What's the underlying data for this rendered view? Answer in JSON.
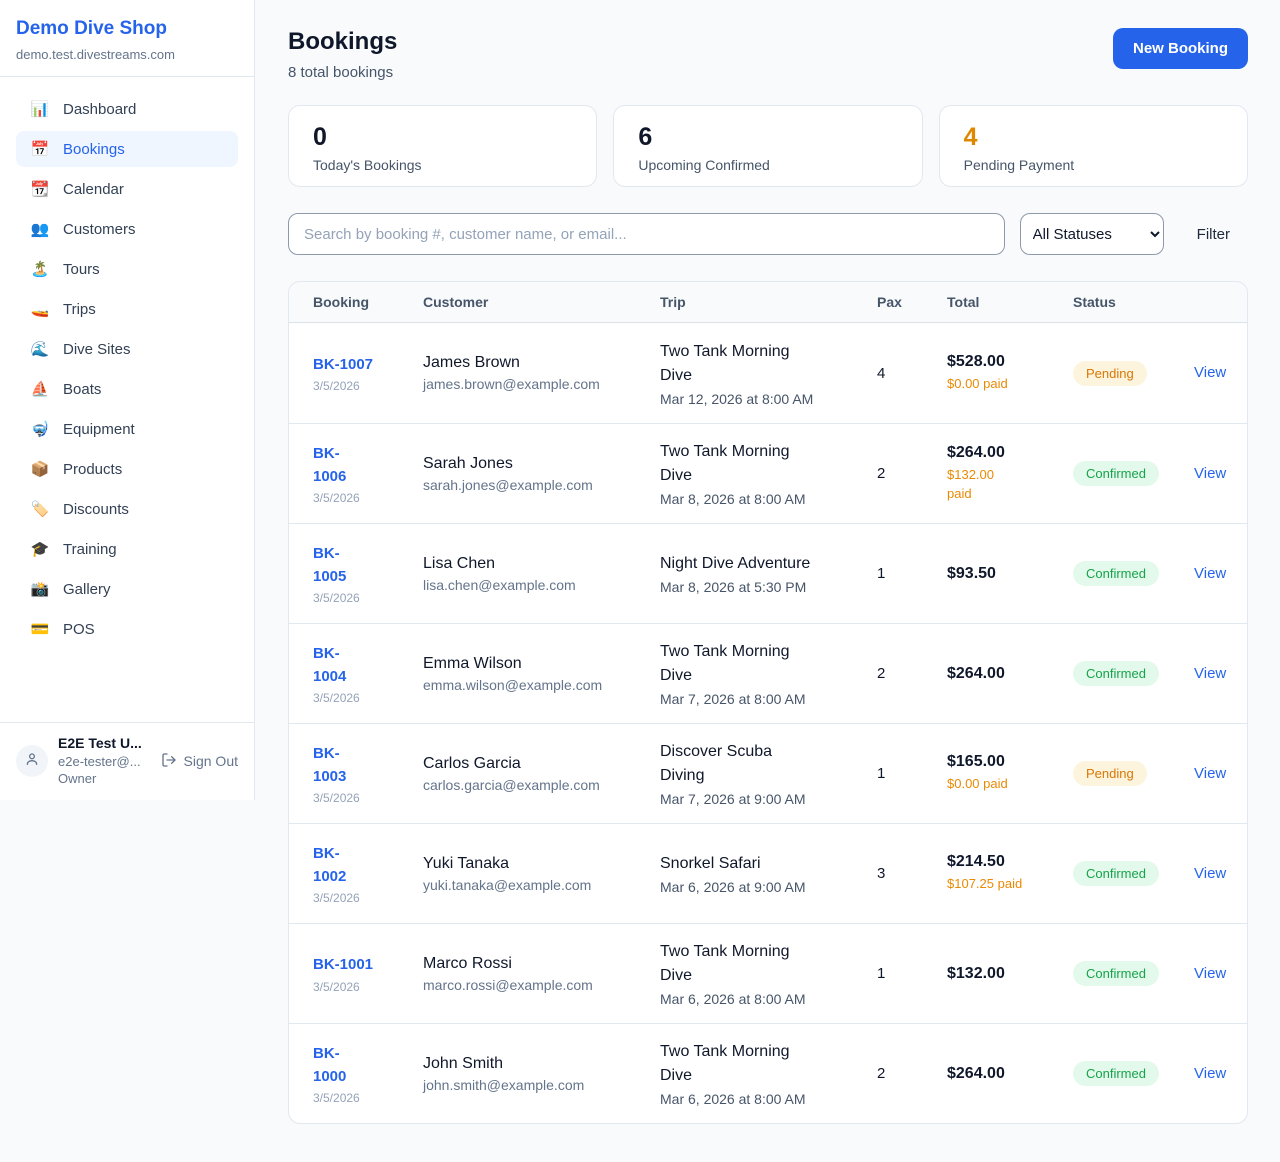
{
  "sidebar": {
    "shop_name": "Demo Dive Shop",
    "shop_domain": "demo.test.divestreams.com",
    "nav": [
      {
        "icon": "📊",
        "label": "Dashboard",
        "active": false
      },
      {
        "icon": "📅",
        "label": "Bookings",
        "active": true
      },
      {
        "icon": "📆",
        "label": "Calendar",
        "active": false
      },
      {
        "icon": "👥",
        "label": "Customers",
        "active": false
      },
      {
        "icon": "🏝️",
        "label": "Tours",
        "active": false
      },
      {
        "icon": "🚤",
        "label": "Trips",
        "active": false
      },
      {
        "icon": "🌊",
        "label": "Dive Sites",
        "active": false
      },
      {
        "icon": "⛵",
        "label": "Boats",
        "active": false
      },
      {
        "icon": "🤿",
        "label": "Equipment",
        "active": false
      },
      {
        "icon": "📦",
        "label": "Products",
        "active": false
      },
      {
        "icon": "🏷️",
        "label": "Discounts",
        "active": false
      },
      {
        "icon": "🎓",
        "label": "Training",
        "active": false
      },
      {
        "icon": "📸",
        "label": "Gallery",
        "active": false
      },
      {
        "icon": "💳",
        "label": "POS",
        "active": false
      }
    ],
    "user": {
      "name": "E2E Test U...",
      "email": "e2e-tester@...",
      "role": "Owner",
      "sign_out_label": "Sign Out"
    }
  },
  "header": {
    "title": "Bookings",
    "subtitle": "8 total bookings",
    "new_booking_label": "New Booking"
  },
  "stats": [
    {
      "value": "0",
      "label": "Today's Bookings",
      "color": "#0f172a"
    },
    {
      "value": "6",
      "label": "Upcoming Confirmed",
      "color": "#0f172a"
    },
    {
      "value": "4",
      "label": "Pending Payment",
      "color": "#e08700"
    }
  ],
  "filters": {
    "search_placeholder": "Search by booking #, customer name, or email...",
    "status_selected": "All Statuses",
    "filter_label": "Filter"
  },
  "table": {
    "columns": [
      "Booking",
      "Customer",
      "Trip",
      "Pax",
      "Total",
      "Status"
    ],
    "rows": [
      {
        "booking_id": "BK-1007",
        "booking_date": "3/5/2026",
        "customer": "James Brown",
        "email": "james.brown@example.com",
        "trip": "Two Tank Morning\nDive",
        "trip_datetime": "Mar 12, 2026 at 8:00 AM",
        "pax": "4",
        "total": "$528.00",
        "paid": "$0.00 paid",
        "status": "Pending",
        "action_label": "View"
      },
      {
        "booking_id": "BK-\n1006",
        "booking_date": "3/5/2026",
        "customer": "Sarah Jones",
        "email": "sarah.jones@example.com",
        "trip": "Two Tank Morning\nDive",
        "trip_datetime": "Mar 8, 2026 at 8:00 AM",
        "pax": "2",
        "total": "$264.00",
        "paid": "$132.00\npaid",
        "status": "Confirmed",
        "action_label": "View"
      },
      {
        "booking_id": "BK-\n1005",
        "booking_date": "3/5/2026",
        "customer": "Lisa Chen",
        "email": "lisa.chen@example.com",
        "trip": "Night Dive Adventure",
        "trip_datetime": "Mar 8, 2026 at 5:30 PM",
        "pax": "1",
        "total": "$93.50",
        "paid": "",
        "status": "Confirmed",
        "action_label": "View"
      },
      {
        "booking_id": "BK-\n1004",
        "booking_date": "3/5/2026",
        "customer": "Emma Wilson",
        "email": "emma.wilson@example.com",
        "trip": "Two Tank Morning\nDive",
        "trip_datetime": "Mar 7, 2026 at 8:00 AM",
        "pax": "2",
        "total": "$264.00",
        "paid": "",
        "status": "Confirmed",
        "action_label": "View"
      },
      {
        "booking_id": "BK-\n1003",
        "booking_date": "3/5/2026",
        "customer": "Carlos Garcia",
        "email": "carlos.garcia@example.com",
        "trip": "Discover Scuba\nDiving",
        "trip_datetime": "Mar 7, 2026 at 9:00 AM",
        "pax": "1",
        "total": "$165.00",
        "paid": "$0.00 paid",
        "status": "Pending",
        "action_label": "View"
      },
      {
        "booking_id": "BK-\n1002",
        "booking_date": "3/5/2026",
        "customer": "Yuki Tanaka",
        "email": "yuki.tanaka@example.com",
        "trip": "Snorkel Safari",
        "trip_datetime": "Mar 6, 2026 at 9:00 AM",
        "pax": "3",
        "total": "$214.50",
        "paid": "$107.25 paid",
        "status": "Confirmed",
        "action_label": "View"
      },
      {
        "booking_id": "BK-1001",
        "booking_date": "3/5/2026",
        "customer": "Marco Rossi",
        "email": "marco.rossi@example.com",
        "trip": "Two Tank Morning\nDive",
        "trip_datetime": "Mar 6, 2026 at 8:00 AM",
        "pax": "1",
        "total": "$132.00",
        "paid": "",
        "status": "Confirmed",
        "action_label": "View"
      },
      {
        "booking_id": "BK-\n1000",
        "booking_date": "3/5/2026",
        "customer": "John Smith",
        "email": "john.smith@example.com",
        "trip": "Two Tank Morning\nDive",
        "trip_datetime": "Mar 6, 2026 at 8:00 AM",
        "pax": "2",
        "total": "$264.00",
        "paid": "",
        "status": "Confirmed",
        "action_label": "View"
      }
    ]
  },
  "colors": {
    "accent_blue": "#2563eb",
    "pending_text": "#d97706",
    "pending_bg": "#fdf4dd",
    "confirmed_text": "#16a34a",
    "confirmed_bg": "#e3f9eb",
    "paid_orange": "#ea8a04",
    "page_bg": "#f8fafc"
  }
}
